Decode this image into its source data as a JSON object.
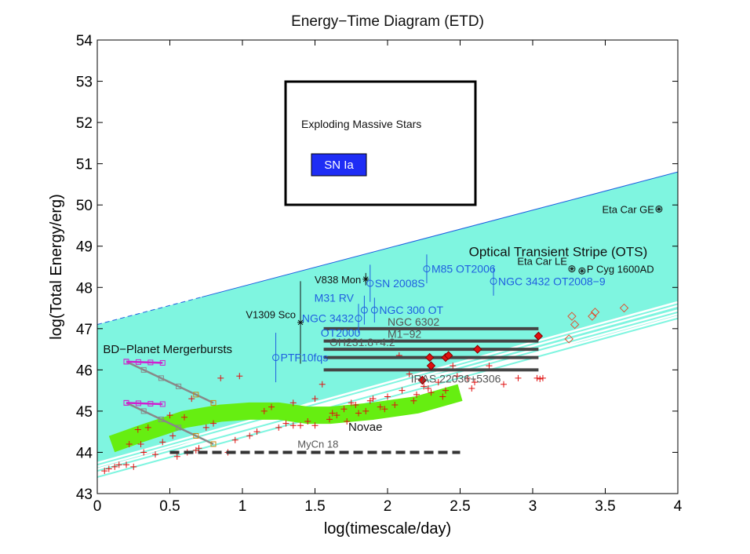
{
  "chart_data": {
    "type": "scatter",
    "title": "Energy−Time Diagram (ETD)",
    "xlabel": "log(timescale/day)",
    "ylabel": "log(Total Energy/erg)",
    "xlim": [
      0,
      4
    ],
    "ylim": [
      43,
      54
    ],
    "xticks": [
      "0",
      "0.5",
      "1",
      "1.5",
      "2",
      "2.5",
      "3",
      "3.5",
      "4"
    ],
    "yticks": [
      "43",
      "44",
      "45",
      "46",
      "47",
      "48",
      "49",
      "50",
      "51",
      "52",
      "53",
      "54"
    ],
    "grid": false,
    "legend": {
      "title": "Exploding Massive Stars",
      "entries": [
        {
          "label": "SN Ia",
          "color": "#1e2df5"
        }
      ]
    },
    "colors": {
      "stripe": "#7ff5e0",
      "novae_band": "#66ee11",
      "transients": "#1f5fe0",
      "novae_points": "#e01010",
      "bars": "#454545",
      "mergerburst_magenta": "#d020d0",
      "mergerburst_orange": "#c88a10"
    },
    "ots_stripe": {
      "label": "Optical Transient Stripe (OTS)",
      "polygon": [
        [
          0,
          47.1
        ],
        [
          4,
          50.8
        ],
        [
          4,
          47.2
        ],
        [
          1.45,
          45.2
        ],
        [
          0,
          43.5
        ]
      ]
    },
    "novae_band": {
      "label": "Novae",
      "centerline": [
        [
          0.1,
          44.2
        ],
        [
          0.3,
          44.45
        ],
        [
          0.6,
          44.8
        ],
        [
          0.85,
          44.95
        ],
        [
          1.05,
          45.0
        ],
        [
          1.25,
          45.0
        ],
        [
          1.45,
          44.9
        ],
        [
          1.6,
          44.9
        ],
        [
          1.9,
          45.0
        ],
        [
          2.2,
          45.15
        ],
        [
          2.5,
          45.45
        ]
      ],
      "points": [
        [
          0.05,
          43.55
        ],
        [
          0.08,
          43.6
        ],
        [
          0.12,
          43.65
        ],
        [
          0.15,
          43.7
        ],
        [
          0.2,
          43.7
        ],
        [
          0.25,
          43.65
        ],
        [
          0.3,
          44.2
        ],
        [
          0.32,
          44.0
        ],
        [
          0.35,
          44.6
        ],
        [
          0.4,
          43.95
        ],
        [
          0.45,
          44.25
        ],
        [
          0.5,
          44.9
        ],
        [
          0.55,
          43.9
        ],
        [
          0.6,
          44.85
        ],
        [
          0.62,
          44.0
        ],
        [
          0.65,
          45.3
        ],
        [
          0.7,
          44.1
        ],
        [
          0.75,
          44.6
        ],
        [
          0.8,
          44.7
        ],
        [
          0.85,
          45.8
        ],
        [
          0.9,
          44.0
        ],
        [
          0.95,
          44.3
        ],
        [
          0.98,
          45.85
        ],
        [
          1.05,
          44.4
        ],
        [
          1.1,
          44.5
        ],
        [
          1.15,
          45.0
        ],
        [
          1.2,
          45.1
        ],
        [
          1.25,
          44.6
        ],
        [
          1.3,
          44.7
        ],
        [
          1.35,
          45.2
        ],
        [
          1.4,
          44.65
        ],
        [
          1.45,
          44.75
        ],
        [
          1.5,
          45.3
        ],
        [
          1.55,
          45.65
        ],
        [
          1.6,
          44.8
        ],
        [
          1.65,
          44.9
        ],
        [
          1.7,
          45.05
        ],
        [
          1.75,
          45.2
        ],
        [
          1.8,
          44.95
        ],
        [
          1.85,
          45.0
        ],
        [
          1.9,
          45.3
        ],
        [
          1.95,
          45.1
        ],
        [
          2.0,
          45.35
        ],
        [
          2.05,
          45.15
        ],
        [
          2.1,
          45.5
        ],
        [
          2.15,
          45.9
        ],
        [
          2.2,
          45.4
        ],
        [
          2.25,
          45.6
        ],
        [
          2.3,
          45.45
        ],
        [
          2.35,
          45.7
        ],
        [
          2.4,
          45.5
        ],
        [
          2.45,
          46.1
        ],
        [
          2.55,
          45.8
        ],
        [
          2.6,
          45.7
        ],
        [
          2.7,
          46.1
        ],
        [
          2.8,
          45.65
        ],
        [
          2.9,
          45.8
        ],
        [
          0.22,
          44.2
        ],
        [
          0.28,
          44.55
        ],
        [
          0.52,
          44.4
        ],
        [
          0.68,
          44.05
        ],
        [
          1.35,
          44.65
        ],
        [
          1.5,
          44.65
        ],
        [
          1.62,
          44.95
        ],
        [
          1.72,
          44.75
        ],
        [
          1.78,
          45.15
        ],
        [
          1.88,
          45.25
        ],
        [
          1.98,
          45.05
        ],
        [
          2.08,
          46.35
        ],
        [
          2.18,
          45.25
        ],
        [
          2.28,
          45.55
        ],
        [
          2.38,
          45.35
        ],
        [
          2.48,
          45.85
        ],
        [
          2.58,
          45.55
        ],
        [
          3.03,
          45.8
        ],
        [
          3.05,
          45.78
        ],
        [
          3.07,
          45.8
        ]
      ]
    },
    "named_transients": [
      {
        "label": "V838 Mon",
        "x": 1.85,
        "y": 48.2,
        "yerr": 0.15,
        "marker": "*",
        "color": "#111111"
      },
      {
        "label": "V1309 Sco",
        "x": 1.4,
        "y": 47.15,
        "yerr": 1.0,
        "marker": "*",
        "color": "#111111"
      },
      {
        "label": "SN 2008S",
        "x": 1.88,
        "y": 48.1,
        "yerr": 0.45,
        "marker": "o",
        "color": "#1f5fe0"
      },
      {
        "label": "M85 OT2006",
        "x": 2.27,
        "y": 48.45,
        "yerr": 0.35,
        "marker": "o",
        "color": "#1f5fe0"
      },
      {
        "label": "NGC 3432 OT2008−9",
        "x": 2.73,
        "y": 48.15,
        "yerr": 0.35,
        "marker": "o",
        "color": "#1f5fe0"
      },
      {
        "label": "M31 RV",
        "x": 1.84,
        "y": 47.45,
        "yerr": 0.35,
        "marker": "o",
        "color": "#1f5fe0"
      },
      {
        "label": "NGC 300 OT",
        "x": 1.91,
        "y": 47.45,
        "yerr": 0.3,
        "marker": "o",
        "color": "#1f5fe0"
      },
      {
        "label": "NGC 3432 OT2000",
        "x": 1.8,
        "y": 47.25,
        "yerr": 0.35,
        "marker": "o",
        "color": "#1f5fe0"
      },
      {
        "label": "PTF10fqs",
        "x": 1.23,
        "y": 46.3,
        "yerr": 0.6,
        "marker": "o",
        "color": "#1f5fe0"
      },
      {
        "label": "Eta Car GE",
        "x": 3.87,
        "y": 49.9,
        "yerr": 0,
        "marker": "circled-star",
        "color": "#111111"
      },
      {
        "label": "Eta Car LE",
        "x": 3.27,
        "y": 48.45,
        "yerr": 0,
        "marker": "circled-star",
        "color": "#111111"
      },
      {
        "label": "P Cyg 1600AD",
        "x": 3.34,
        "y": 48.4,
        "yerr": 0,
        "marker": "circled-star",
        "color": "#111111"
      }
    ],
    "diamonds_filled": [
      [
        2.24,
        45.75
      ],
      [
        2.29,
        46.3
      ],
      [
        2.3,
        46.1
      ],
      [
        2.4,
        46.3
      ],
      [
        2.42,
        46.35
      ],
      [
        2.62,
        46.5
      ],
      [
        3.04,
        46.82
      ]
    ],
    "diamonds_open": [
      [
        3.25,
        46.75
      ],
      [
        3.27,
        47.3
      ],
      [
        3.29,
        47.1
      ],
      [
        3.41,
        47.3
      ],
      [
        3.43,
        47.4
      ],
      [
        3.63,
        47.5
      ]
    ],
    "horizontal_bars": [
      {
        "label": "NGC 6302",
        "x": [
          1.56,
          3.04
        ],
        "y": 47.0
      },
      {
        "label": "M1−92",
        "x": [
          1.56,
          3.04
        ],
        "y": 46.7
      },
      {
        "label": "OH231.8+4.2",
        "x": [
          1.56,
          3.04
        ],
        "y": 46.5
      },
      {
        "label": "",
        "x": [
          1.56,
          3.04
        ],
        "y": 46.3
      },
      {
        "label": "IRAS 22036+5306",
        "x": [
          1.56,
          3.04
        ],
        "y": 46.0
      }
    ],
    "dashed_bar": {
      "label": "MyCn 18",
      "x": [
        0.5,
        2.5
      ],
      "y": 44.0
    },
    "mergerbursts": {
      "label": "BD−Planet Mergerbursts",
      "upper": {
        "mag": [
          [
            0.2,
            46.2
          ],
          [
            0.45,
            46.17
          ]
        ],
        "line": [
          [
            0.2,
            46.2
          ],
          [
            0.8,
            45.2
          ]
        ]
      },
      "lower": {
        "mag": [
          [
            0.2,
            45.2
          ],
          [
            0.45,
            45.17
          ]
        ],
        "line": [
          [
            0.2,
            45.2
          ],
          [
            0.8,
            44.2
          ]
        ]
      }
    },
    "upper_lines": [
      [
        [
          0,
          47.1
        ],
        [
          4,
          50.8
        ]
      ]
    ],
    "lower_lines": [
      [
        [
          0,
          43.7
        ],
        [
          4,
          47.6
        ]
      ],
      [
        [
          0,
          43.55
        ],
        [
          4,
          47.4
        ]
      ],
      [
        [
          0,
          43.4
        ],
        [
          4,
          47.25
        ]
      ]
    ]
  }
}
